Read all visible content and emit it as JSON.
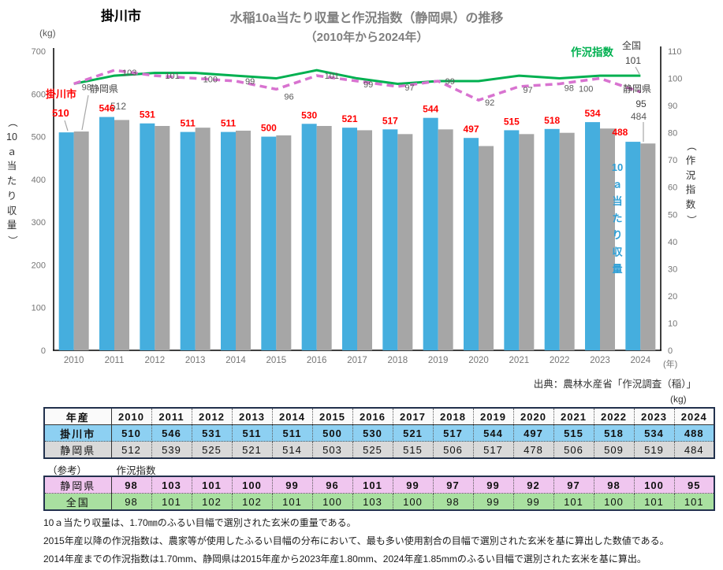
{
  "page": {
    "corner_label": "掛川市",
    "title_line1": "水稲10a当たり収量と作況指数（静岡県）の推移",
    "title_line2": "（2010年から2024年）",
    "source": "出典：農林水産省「作況調査（稲）」",
    "table_unit_label": "(kg)"
  },
  "colors": {
    "bar_kakegawa": "#45aede",
    "bar_shizuoka": "#a6a6a6",
    "line_zenkoku": "#00b050",
    "line_shizuoka": "#d873d0",
    "value_red": "#ff0000",
    "title_gray": "#7f7f7f",
    "row_blue": "#8dd0f2",
    "row_gray": "#d9d9d9",
    "row_pink": "#f0c6ef",
    "row_green": "#a9e0a0"
  },
  "chart_data": {
    "type": "bar",
    "subtype": "combo-bar-line-dual-axis",
    "title": "水稲10a当たり収量と作況指数（静岡県）の推移（2010年から2024年）",
    "categories": [
      "2010",
      "2011",
      "2012",
      "2013",
      "2014",
      "2015",
      "2016",
      "2017",
      "2018",
      "2019",
      "2020",
      "2021",
      "2022",
      "2023",
      "2024"
    ],
    "bar_series": [
      {
        "name": "掛川市",
        "axis": "left",
        "color": "#45aede",
        "values": [
          510,
          546,
          531,
          511,
          511,
          500,
          530,
          521,
          517,
          544,
          497,
          515,
          518,
          534,
          488
        ]
      },
      {
        "name": "静岡県",
        "axis": "left",
        "color": "#a6a6a6",
        "values": [
          512,
          539,
          525,
          521,
          514,
          503,
          525,
          515,
          506,
          517,
          478,
          506,
          509,
          519,
          484
        ]
      }
    ],
    "line_series": [
      {
        "name": "全国",
        "axis": "right",
        "color": "#00b050",
        "style": "solid",
        "values": [
          98,
          101,
          102,
          102,
          101,
          100,
          103,
          100,
          98,
          99,
          99,
          101,
          100,
          101,
          101
        ]
      },
      {
        "name": "静岡県",
        "axis": "right",
        "color": "#d873d0",
        "style": "dashed",
        "values": [
          98,
          103,
          101,
          100,
          99,
          96,
          101,
          99,
          97,
          99,
          92,
          97,
          98,
          100,
          95
        ]
      }
    ],
    "left_axis": {
      "unit": "(kg)",
      "label": "（10ａ当たり収量）",
      "min": 0,
      "max": 700,
      "step": 100
    },
    "right_axis": {
      "label": "（作況指数）",
      "min": 0,
      "max": 110,
      "step": 10
    },
    "x_axis": {
      "unit": "(年)"
    },
    "grid": false,
    "legend_position": "annotations",
    "annotations": {
      "line_title": "作況指数",
      "zenkoku_label": "全国",
      "zenkoku_last_value": "101",
      "shizuoka_right_label": "静岡県",
      "shizuoka_last_index": "95",
      "shizuoka_last_bar": "484",
      "kakegawa_label": "掛川市",
      "kakegawa_first_value": "510",
      "shizuoka_first_bar": "512",
      "inner_bar_axis_label": "10ａ当たり収量"
    }
  },
  "table_kg": {
    "header_label": "年産",
    "years": [
      "2010",
      "2011",
      "2012",
      "2013",
      "2014",
      "2015",
      "2016",
      "2017",
      "2018",
      "2019",
      "2020",
      "2021",
      "2022",
      "2023",
      "2024"
    ],
    "rows": [
      {
        "label": "掛川市",
        "style": "blue",
        "values": [
          "510",
          "546",
          "531",
          "511",
          "511",
          "500",
          "530",
          "521",
          "517",
          "544",
          "497",
          "515",
          "518",
          "534",
          "488"
        ]
      },
      {
        "label": "静岡県",
        "style": "gray",
        "values": [
          "512",
          "539",
          "525",
          "521",
          "514",
          "503",
          "525",
          "515",
          "506",
          "517",
          "478",
          "506",
          "509",
          "519",
          "484"
        ]
      }
    ]
  },
  "sakkyo_caption": {
    "left": "（参考）",
    "right": "作況指数"
  },
  "table_index": {
    "rows": [
      {
        "label": "静岡県",
        "style": "pink",
        "values": [
          "98",
          "103",
          "101",
          "100",
          "99",
          "96",
          "101",
          "99",
          "97",
          "99",
          "92",
          "97",
          "98",
          "100",
          "95"
        ]
      },
      {
        "label": "全国",
        "style": "green",
        "values": [
          "98",
          "101",
          "102",
          "102",
          "101",
          "100",
          "103",
          "100",
          "98",
          "99",
          "99",
          "101",
          "100",
          "101",
          "101"
        ]
      }
    ]
  },
  "footnotes": [
    "10ａ当たり収量は、1.70㎜のふるい目幅で選別された玄米の重量である。",
    "2015年産以降の作況指数は、農家等が使用したふるい目幅の分布において、最も多い使用割合の目幅で選別された玄米を基に算出した数値である。",
    "2014年産までの作況指数は1.70mm、静岡県は2015年産から2023年産1.80mm、2024年産1.85mmのふるい目幅で選別された玄米を基に算出。"
  ]
}
